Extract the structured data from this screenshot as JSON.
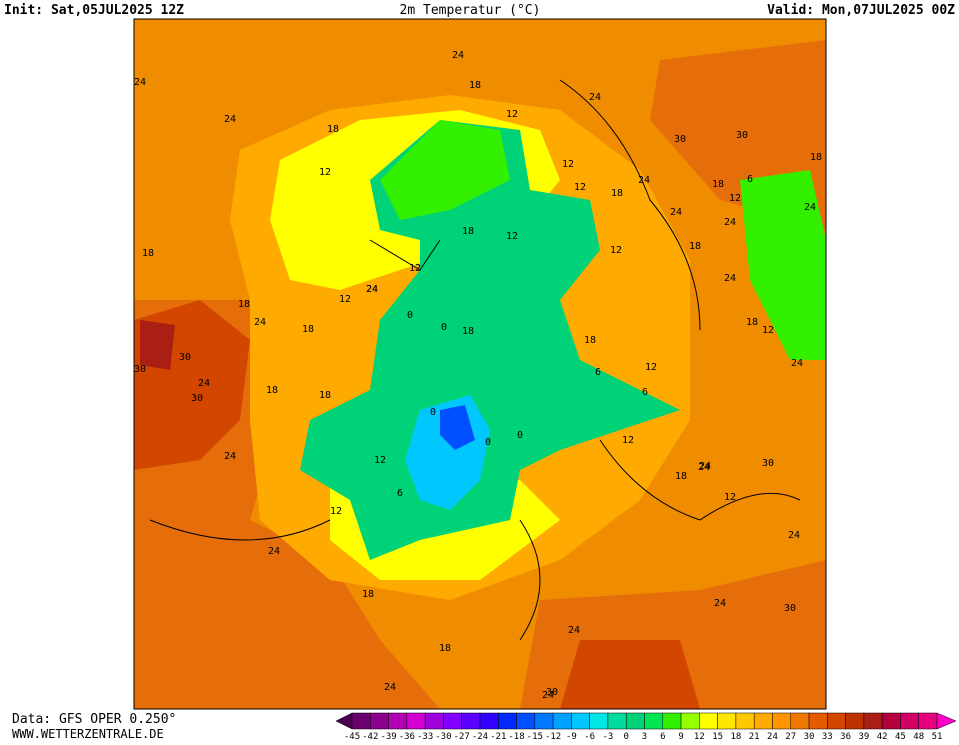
{
  "header": {
    "init": "Init: Sat,05JUL2025 12Z",
    "title": "2m Temperatur (°C)",
    "valid": "Valid: Mon,07JUL2025 00Z"
  },
  "footer": {
    "source": "Data: GFS OPER 0.250°",
    "site": "WWW.WETTERZENTRALE.DE"
  },
  "legend": {
    "ticks": [
      -45,
      -42,
      -39,
      -36,
      -33,
      -30,
      -27,
      -24,
      -21,
      -18,
      -15,
      -12,
      -9,
      -6,
      -3,
      0,
      3,
      6,
      9,
      12,
      15,
      18,
      21,
      24,
      27,
      30,
      33,
      36,
      39,
      42,
      45,
      48,
      51
    ],
    "colors": [
      "#4b0050",
      "#6a006e",
      "#8c008c",
      "#b400b4",
      "#d200d2",
      "#a000dc",
      "#8200ff",
      "#5a00ff",
      "#3200ff",
      "#0028ff",
      "#0050ff",
      "#0078ff",
      "#00a0ff",
      "#00c8ff",
      "#00e6e6",
      "#00dca0",
      "#00d278",
      "#00e650",
      "#32f000",
      "#96ff00",
      "#ffff00",
      "#ffe600",
      "#ffc800",
      "#ffaa00",
      "#ff9600",
      "#f07800",
      "#e65a00",
      "#d24600",
      "#be3200",
      "#aa1e14",
      "#b4003c",
      "#d20064",
      "#e6007d",
      "#ff00c8"
    ]
  },
  "map": {
    "contour_labels": [
      "24",
      "18",
      "24",
      "24",
      "18",
      "12",
      "12",
      "12",
      "24",
      "18",
      "18",
      "24",
      "18",
      "12",
      "24",
      "24",
      "18",
      "18",
      "12",
      "6",
      "18",
      "12",
      "24",
      "18",
      "12",
      "12",
      "0",
      "0",
      "12",
      "18",
      "24",
      "30",
      "30",
      "24",
      "30",
      "18",
      "18",
      "0",
      "0",
      "6",
      "0",
      "12",
      "6",
      "12",
      "24",
      "18",
      "24",
      "12",
      "24",
      "24",
      "12",
      "18",
      "12",
      "18",
      "24",
      "18",
      "24",
      "30",
      "24",
      "30",
      "24",
      "30",
      "24",
      "24",
      "6",
      "12",
      "18",
      "24",
      "24",
      "18",
      "30",
      "30",
      "24"
    ]
  }
}
